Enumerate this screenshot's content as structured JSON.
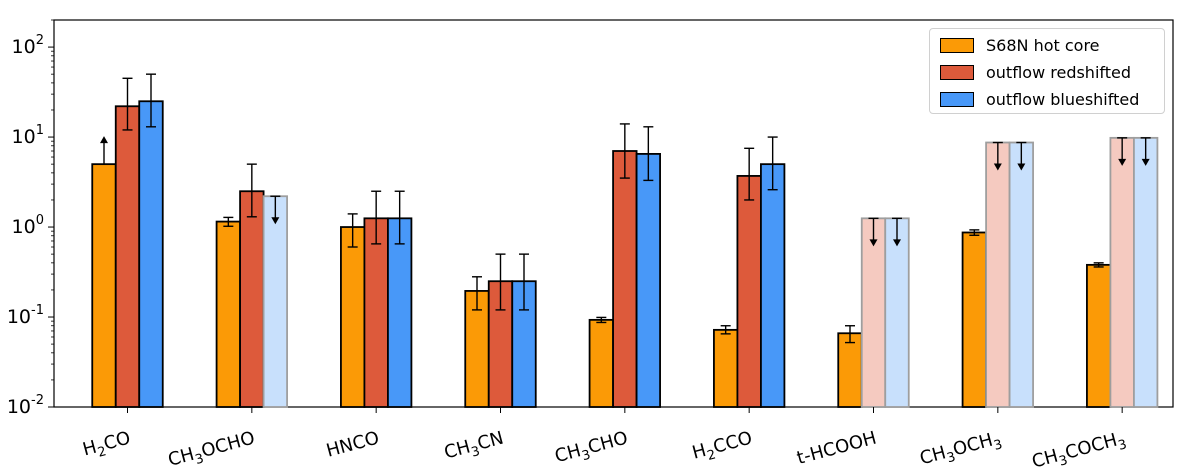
{
  "chart_data": {
    "type": "bar",
    "scale": "log",
    "ylim": [
      0.01,
      200
    ],
    "ytick_labels": [
      {
        "base": "10",
        "exp": "2",
        "value": 100
      },
      {
        "base": "10",
        "exp": "1",
        "value": 10
      },
      {
        "base": "10",
        "exp": "0",
        "value": 1
      },
      {
        "base": "10",
        "exp": "-1",
        "value": 0.1
      },
      {
        "base": "10",
        "exp": "-2",
        "value": 0.01
      }
    ],
    "categories": [
      [
        {
          "t": "H"
        },
        {
          "t": "2",
          "sub": true
        },
        {
          "t": "CO"
        }
      ],
      [
        {
          "t": "CH"
        },
        {
          "t": "3",
          "sub": true
        },
        {
          "t": "OCHO"
        }
      ],
      [
        {
          "t": "HNCO"
        }
      ],
      [
        {
          "t": "CH"
        },
        {
          "t": "3",
          "sub": true
        },
        {
          "t": "CN"
        }
      ],
      [
        {
          "t": "CH"
        },
        {
          "t": "3",
          "sub": true
        },
        {
          "t": "CHO"
        }
      ],
      [
        {
          "t": "H"
        },
        {
          "t": "2",
          "sub": true
        },
        {
          "t": "CCO"
        }
      ],
      [
        {
          "t": "t-HCOOH"
        }
      ],
      [
        {
          "t": "CH"
        },
        {
          "t": "3",
          "sub": true
        },
        {
          "t": "OCH"
        },
        {
          "t": "3",
          "sub": true
        }
      ],
      [
        {
          "t": "CH"
        },
        {
          "t": "3",
          "sub": true
        },
        {
          "t": "COCH"
        },
        {
          "t": "3",
          "sub": true
        }
      ]
    ],
    "series": [
      {
        "name": "S68N hot core",
        "color": "#fb9a06",
        "faded_color": "#fde0b4",
        "values": [
          5.0,
          1.15,
          1.0,
          0.195,
          0.093,
          0.072,
          0.066,
          0.87,
          0.38
        ],
        "err_low": [
          null,
          1.02,
          0.6,
          0.12,
          0.087,
          0.065,
          0.052,
          0.81,
          0.36
        ],
        "err_high": [
          null,
          1.28,
          1.4,
          0.28,
          0.099,
          0.08,
          0.08,
          0.93,
          0.4
        ],
        "limit": [
          "lower",
          null,
          null,
          null,
          null,
          null,
          null,
          null,
          null
        ]
      },
      {
        "name": "outflow redshifted",
        "color": "#dd5a3b",
        "faded_color": "#f5cac0",
        "values": [
          22.0,
          2.5,
          1.25,
          0.25,
          7.0,
          3.7,
          1.25,
          8.7,
          9.8
        ],
        "err_low": [
          12.0,
          1.3,
          0.65,
          0.12,
          3.5,
          2.0,
          null,
          null,
          null
        ],
        "err_high": [
          45.0,
          5.0,
          2.5,
          0.5,
          14.0,
          7.5,
          null,
          null,
          null
        ],
        "limit": [
          null,
          null,
          null,
          null,
          null,
          null,
          "upper",
          "upper",
          "upper"
        ]
      },
      {
        "name": "outflow blueshifted",
        "color": "#4898f8",
        "faded_color": "#c8e0fc",
        "values": [
          25.0,
          2.2,
          1.25,
          0.25,
          6.5,
          5.0,
          1.25,
          8.7,
          9.8
        ],
        "err_low": [
          13.0,
          null,
          0.65,
          0.12,
          3.3,
          2.6,
          null,
          null,
          null
        ],
        "err_high": [
          50.0,
          null,
          2.5,
          0.5,
          13.0,
          10.0,
          null,
          null,
          null
        ],
        "limit": [
          null,
          "upper",
          null,
          null,
          null,
          null,
          "upper",
          "upper",
          "upper"
        ]
      }
    ],
    "legend_position": "top-right"
  }
}
